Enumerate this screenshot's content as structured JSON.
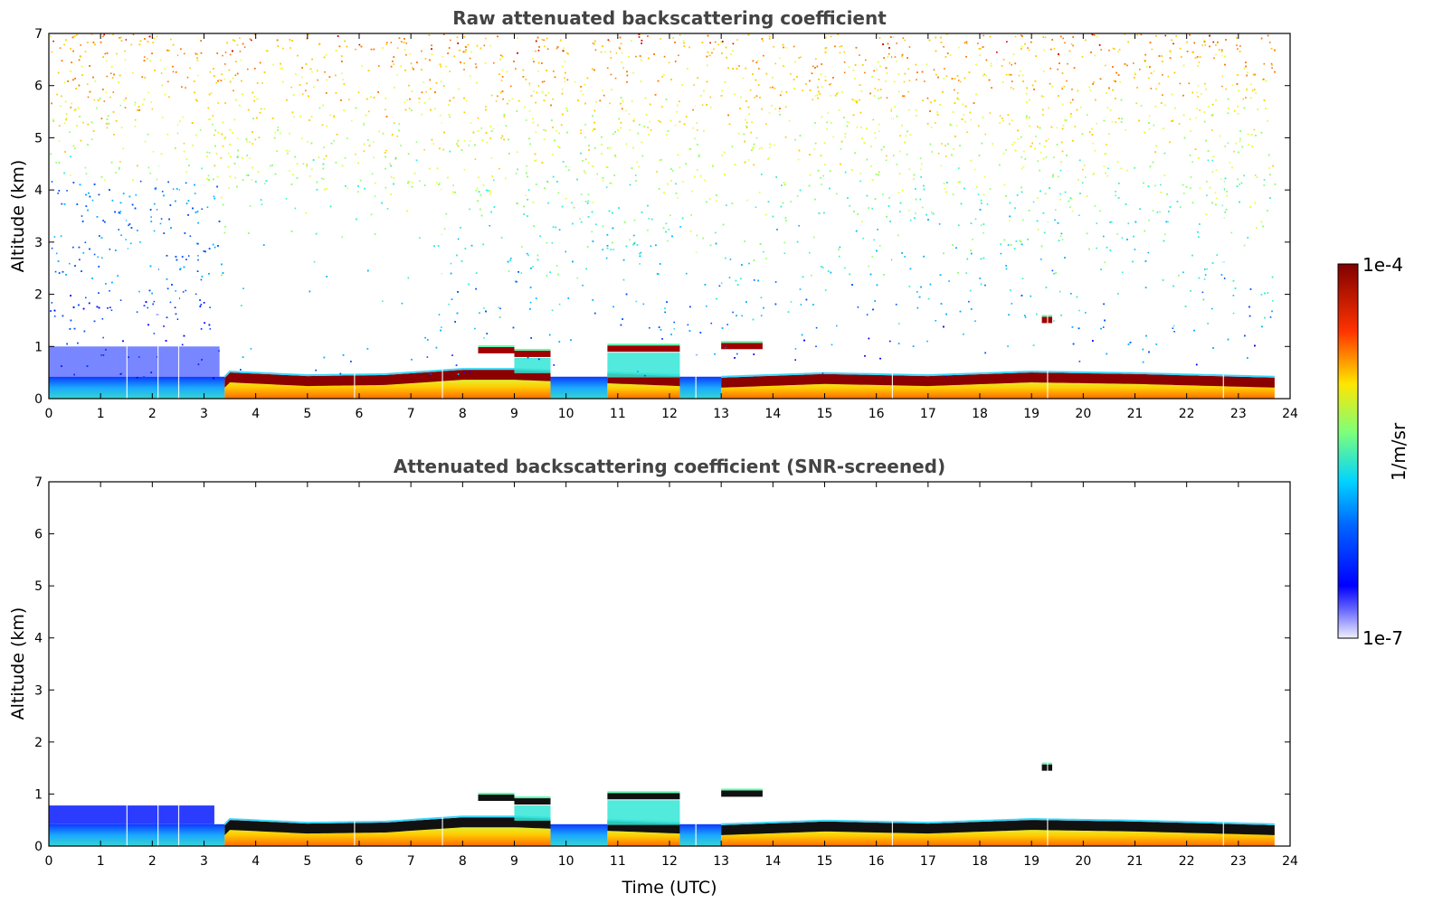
{
  "chart_data": [
    {
      "type": "heatmap",
      "title": "Raw attenuated backscattering coefficient",
      "xlabel": "",
      "ylabel": "Altitude (km)",
      "xlim": [
        0,
        24
      ],
      "ylim": [
        0,
        7
      ],
      "x_ticks": [
        "0",
        "1",
        "2",
        "3",
        "4",
        "5",
        "6",
        "7",
        "8",
        "9",
        "10",
        "11",
        "12",
        "13",
        "14",
        "15",
        "16",
        "17",
        "18",
        "19",
        "20",
        "21",
        "22",
        "23",
        "24"
      ],
      "y_ticks": [
        "0",
        "1",
        "2",
        "3",
        "4",
        "5",
        "6",
        "7"
      ],
      "data_end_time": 23.7,
      "cloud_base_km": [
        {
          "t": 3.5,
          "z": 0.45
        },
        {
          "t": 5,
          "z": 0.38
        },
        {
          "t": 6.5,
          "z": 0.4
        },
        {
          "t": 8,
          "z": 0.5
        },
        {
          "t": 9,
          "z": 0.5
        },
        {
          "t": 13,
          "z": 0.35
        },
        {
          "t": 15,
          "z": 0.42
        },
        {
          "t": 17,
          "z": 0.38
        },
        {
          "t": 19,
          "z": 0.45
        },
        {
          "t": 21,
          "z": 0.42
        },
        {
          "t": 23.7,
          "z": 0.35
        }
      ],
      "elevated_layers_km": [
        {
          "t0": 8.3,
          "t1": 9.0,
          "z": 0.92
        },
        {
          "t0": 9.0,
          "t1": 9.7,
          "z": 0.85
        },
        {
          "t0": 10.8,
          "t1": 12.2,
          "z": 0.95
        },
        {
          "t0": 13.0,
          "t1": 13.8,
          "z": 1.0
        },
        {
          "t0": 19.2,
          "t1": 19.4,
          "z": 1.5
        }
      ]
    },
    {
      "type": "heatmap",
      "title": "Attenuated backscattering coefficient (SNR-screened)",
      "xlabel": "Time (UTC)",
      "ylabel": "Altitude (km)",
      "xlim": [
        0,
        24
      ],
      "ylim": [
        0,
        7
      ],
      "x_ticks": [
        "0",
        "1",
        "2",
        "3",
        "4",
        "5",
        "6",
        "7",
        "8",
        "9",
        "10",
        "11",
        "12",
        "13",
        "14",
        "15",
        "16",
        "17",
        "18",
        "19",
        "20",
        "21",
        "22",
        "23",
        "24"
      ],
      "y_ticks": [
        "0",
        "1",
        "2",
        "3",
        "4",
        "5",
        "6",
        "7"
      ],
      "data_end_time": 23.7
    }
  ],
  "colorbar": {
    "max_label": "1e-4",
    "min_label": "1e-7",
    "units": "1/m/sr",
    "colormap": [
      "#ffffff",
      "#0000ff",
      "#00c8ff",
      "#7ffb7f",
      "#ffd700",
      "#ff4500",
      "#800000"
    ]
  }
}
